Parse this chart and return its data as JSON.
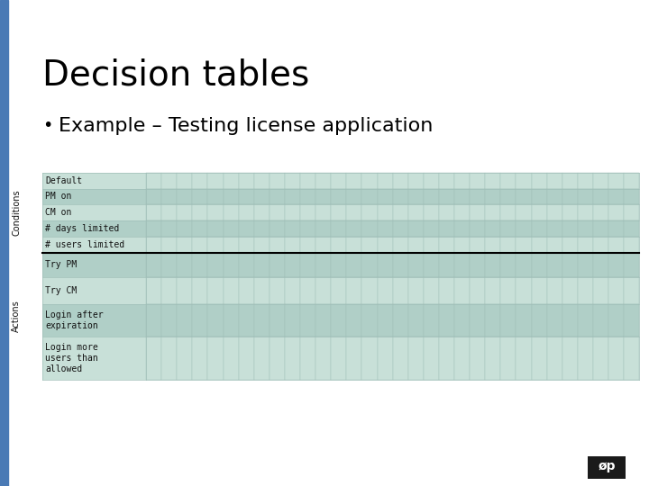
{
  "title": "Decision tables",
  "bullet_text": "Example – Testing license application",
  "background_color": "#ffffff",
  "left_bar_color": "#4a7ab5",
  "title_color": "#000000",
  "bullet_color": "#000000",
  "table_bg_light": "#c8e0d8",
  "table_bg_dark": "#b0cfc7",
  "table_line_color": "#a0bfb8",
  "separator_line_color": "#000000",
  "conditions_label": "Conditions",
  "actions_label": "Actions",
  "condition_rows": [
    "Default",
    "PM on",
    "CM on",
    "# days limited",
    "# users limited"
  ],
  "action_rows": [
    "Try PM",
    "Try CM",
    "Login after\nexpiration",
    "Login more\nusers than\nallowed"
  ],
  "num_columns": 32,
  "side_bar_width": 0.012
}
